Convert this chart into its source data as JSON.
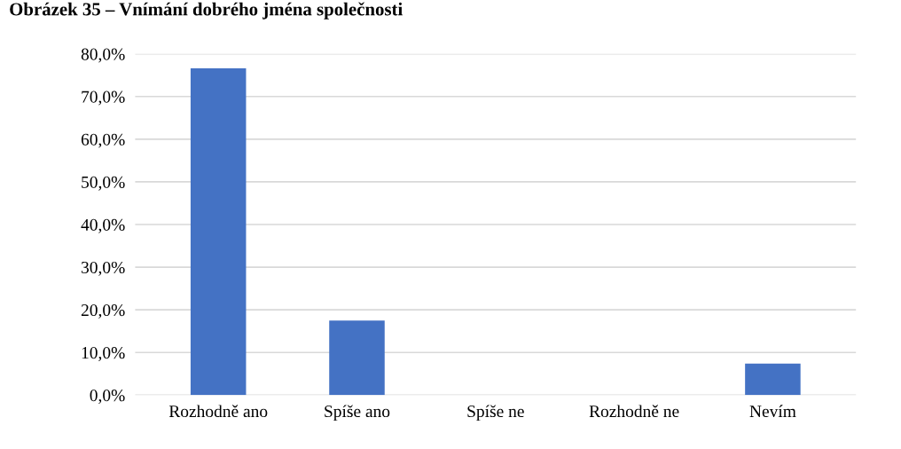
{
  "chart_data": {
    "type": "bar",
    "title": "Obrázek 35 – Vnímání dobrého jména společnosti",
    "categories": [
      "Rozhodně ano",
      "Spíše ano",
      "Spíše ne",
      "Rozhodně ne",
      "Nevím"
    ],
    "values": [
      76.6,
      17.5,
      0,
      0,
      7.4
    ],
    "color": "#4472c4",
    "ylim": [
      0,
      80
    ],
    "yticks": [
      {
        "value": 0,
        "label": "0,0%"
      },
      {
        "value": 10,
        "label": "10,0%"
      },
      {
        "value": 20,
        "label": "20,0%"
      },
      {
        "value": 30,
        "label": "30,0%"
      },
      {
        "value": 40,
        "label": "40,0%"
      },
      {
        "value": 50,
        "label": "50,0%"
      },
      {
        "value": 60,
        "label": "60,0%"
      },
      {
        "value": 70,
        "label": "70,0%"
      },
      {
        "value": 80,
        "label": "80,0%"
      }
    ],
    "grid": "y",
    "legend": false
  }
}
